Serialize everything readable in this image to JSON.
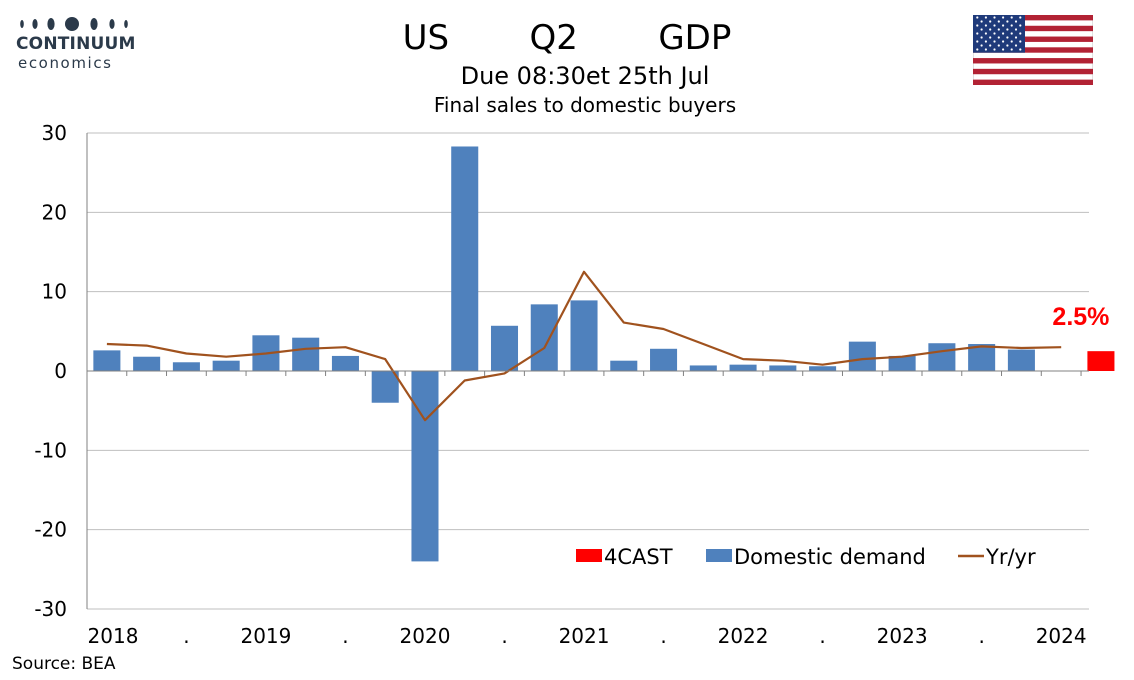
{
  "logo": {
    "name": "CONTINUUM",
    "sub": "economics"
  },
  "header": {
    "title": "US   Q2   GDP",
    "subtitle": "Due 08:30et 25th Jul",
    "subtitle2": "Final sales to domestic buyers"
  },
  "footer": {
    "source": "Source: BEA"
  },
  "colors": {
    "bars": "#4f81bd",
    "forecast": "#ff0000",
    "line": "#a0521e",
    "grid": "#bfbfbf"
  },
  "chart_data": {
    "type": "bar",
    "categories": [
      "2018 Q1",
      "2018 Q2",
      "2018 Q3",
      "2018 Q4",
      "2019 Q1",
      "2019 Q2",
      "2019 Q3",
      "2019 Q4",
      "2020 Q1",
      "2020 Q2",
      "2020 Q3",
      "2020 Q4",
      "2021 Q1",
      "2021 Q2",
      "2021 Q3",
      "2021 Q4",
      "2022 Q1",
      "2022 Q2",
      "2022 Q3",
      "2022 Q4",
      "2023 Q1",
      "2023 Q2",
      "2023 Q3",
      "2023 Q4",
      "2024 Q1",
      "2024 Q2"
    ],
    "x_tick_labels": [
      "2018",
      ".",
      "2019",
      ".",
      "2020",
      ".",
      "2021",
      ".",
      "2022",
      ".",
      "2023",
      ".",
      "2024"
    ],
    "ylim": [
      -30,
      30
    ],
    "yticks": [
      30,
      20,
      10,
      0,
      -10,
      -20,
      -30
    ],
    "grid": true,
    "legend_position": "bottom-right",
    "series": [
      {
        "name": "Domestic demand",
        "type": "bar",
        "values": [
          2.6,
          1.8,
          1.1,
          1.3,
          4.5,
          4.2,
          1.9,
          -4.0,
          -24.0,
          28.3,
          5.7,
          8.4,
          8.9,
          1.3,
          2.8,
          0.7,
          0.8,
          0.7,
          0.6,
          3.7,
          1.9,
          3.5,
          3.4,
          2.7,
          null,
          null
        ]
      },
      {
        "name": "4CAST",
        "type": "bar",
        "values": [
          null,
          null,
          null,
          null,
          null,
          null,
          null,
          null,
          null,
          null,
          null,
          null,
          null,
          null,
          null,
          null,
          null,
          null,
          null,
          null,
          null,
          null,
          null,
          null,
          null,
          2.5
        ]
      },
      {
        "name": "Yr/yr",
        "type": "line",
        "values": [
          3.4,
          3.2,
          2.2,
          1.8,
          2.2,
          2.8,
          3.0,
          1.5,
          -6.2,
          -1.2,
          -0.3,
          2.9,
          12.5,
          6.1,
          5.3,
          3.4,
          1.5,
          1.3,
          0.8,
          1.5,
          1.8,
          2.5,
          3.1,
          2.9,
          3.0,
          null
        ]
      }
    ],
    "annotations": [
      {
        "text": "2.5%",
        "category": "2024 Q2"
      }
    ]
  }
}
